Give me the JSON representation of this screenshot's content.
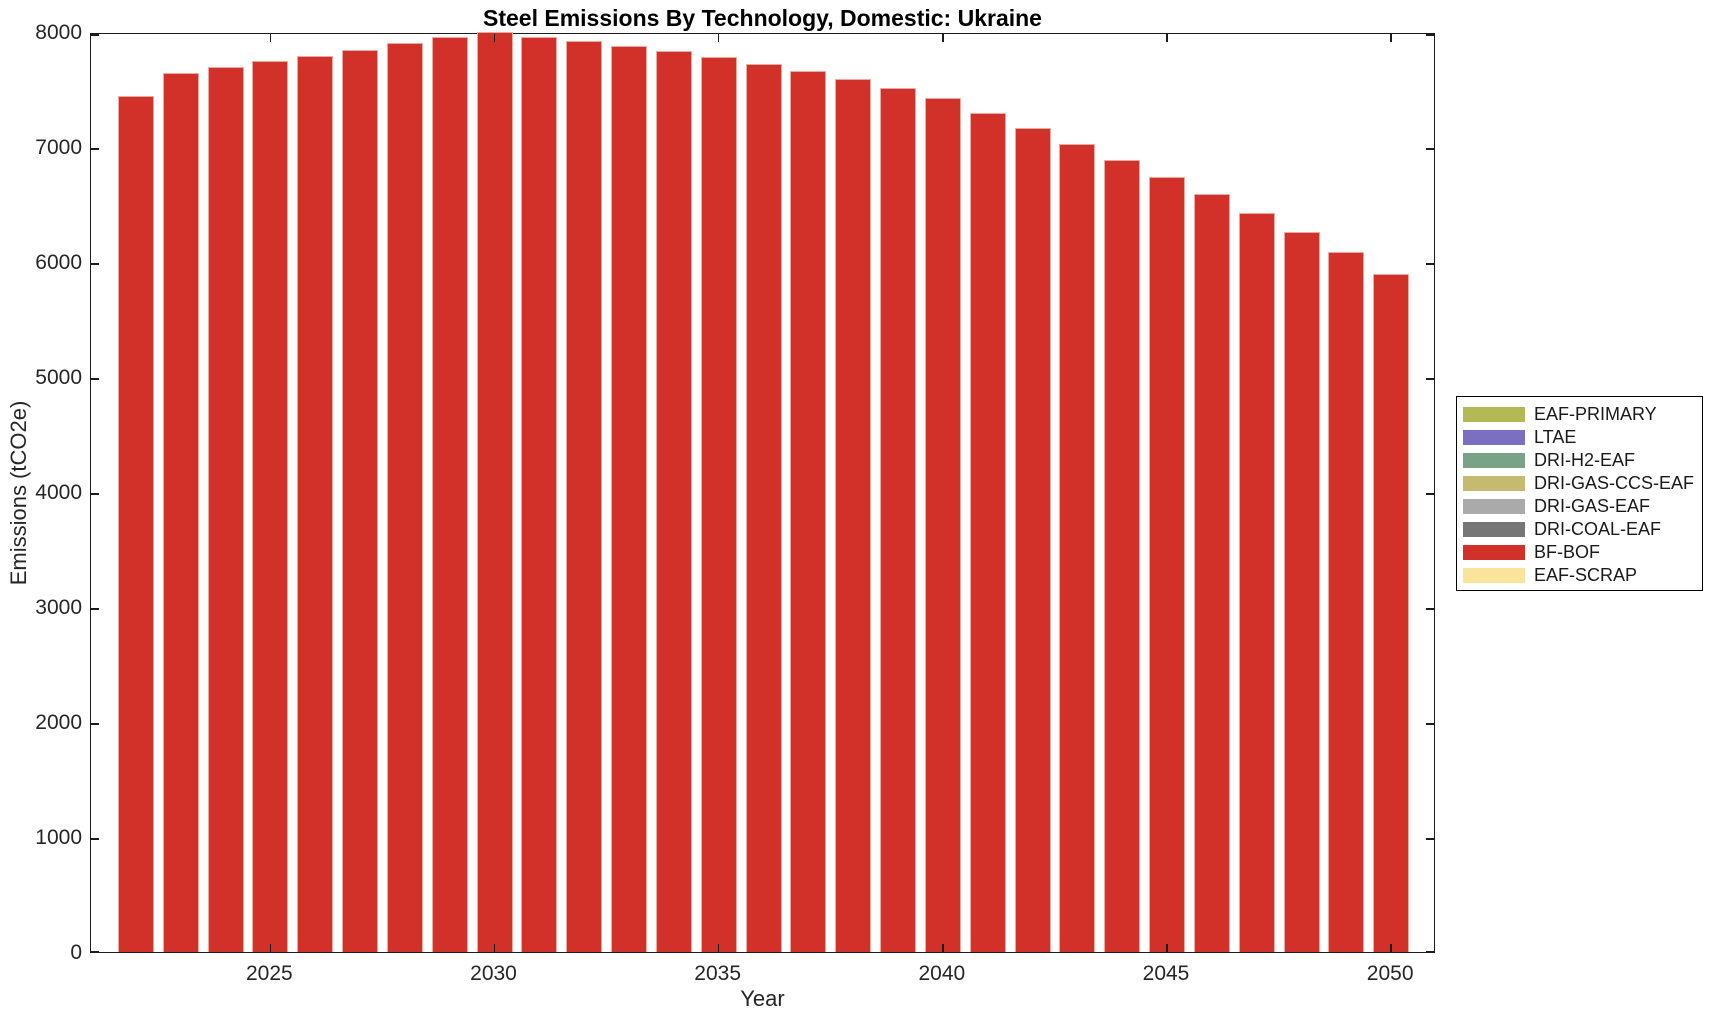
{
  "figure": {
    "title": "Steel Emissions By Technology, Domestic: Ukraine",
    "xlabel": "Year",
    "ylabel": "Emissions (tCO2e)"
  },
  "chart_data": {
    "type": "bar",
    "title": "Steel Emissions By Technology, Domestic: Ukraine",
    "xlabel": "Year",
    "ylabel": "Emissions (tCO2e)",
    "x": [
      2022,
      2023,
      2024,
      2025,
      2026,
      2027,
      2028,
      2029,
      2030,
      2031,
      2032,
      2033,
      2034,
      2035,
      2036,
      2037,
      2038,
      2039,
      2040,
      2041,
      2042,
      2043,
      2044,
      2045,
      2046,
      2047,
      2048,
      2049,
      2050
    ],
    "series": [
      {
        "name": "BF-BOF",
        "values": [
          7440,
          7645,
          7700,
          7745,
          7790,
          7845,
          7905,
          7955,
          8000,
          7960,
          7920,
          7880,
          7835,
          7780,
          7720,
          7660,
          7590,
          7510,
          7425,
          7295,
          7165,
          7025,
          6890,
          6740,
          6590,
          6430,
          6260,
          6085,
          5900
        ]
      }
    ],
    "bar_color": "#d2312a",
    "bar_edge_color": "#ecaaa3",
    "axis_color": "#262626",
    "xlim": [
      2021,
      2051
    ],
    "ylim": [
      0,
      8000
    ],
    "xticks": [
      2025,
      2030,
      2035,
      2040,
      2045,
      2050
    ],
    "yticks": [
      0,
      1000,
      2000,
      3000,
      4000,
      5000,
      6000,
      7000,
      8000
    ],
    "grid": false,
    "legend_position": "right-outside",
    "legend": [
      {
        "label": "EAF-PRIMARY",
        "color": "#b3ba55"
      },
      {
        "label": "LTAE",
        "color": "#7a6fc0"
      },
      {
        "label": "DRI-H2-EAF",
        "color": "#79a287"
      },
      {
        "label": "DRI-GAS-CCS-EAF",
        "color": "#c5ba6f"
      },
      {
        "label": "DRI-GAS-EAF",
        "color": "#aaaaaa"
      },
      {
        "label": "DRI-COAL-EAF",
        "color": "#767676"
      },
      {
        "label": "BF-BOF",
        "color": "#d2312a"
      },
      {
        "label": "EAF-SCRAP",
        "color": "#fae49c"
      }
    ]
  }
}
